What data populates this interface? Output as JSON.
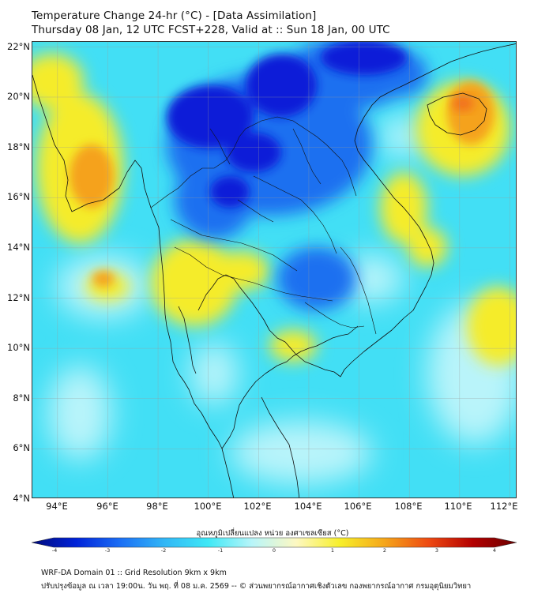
{
  "header": {
    "title_line1": "Temperature Change 24-hr (°C) - [Data Assimilation]",
    "title_line2": "Thursday 08 Jan, 12 UTC FCST+228, Valid at :: Sun 18 Jan, 00 UTC"
  },
  "map": {
    "lat_labels": [
      "22°N",
      "20°N",
      "18°N",
      "16°N",
      "14°N",
      "12°N",
      "10°N",
      "8°N",
      "6°N",
      "4°N"
    ],
    "lon_labels": [
      "94°E",
      "96°E",
      "98°E",
      "100°E",
      "102°E",
      "104°E",
      "106°E",
      "108°E",
      "110°E",
      "112°E"
    ],
    "lat_range": [
      4,
      22.2
    ],
    "lon_range": [
      93,
      112.3
    ],
    "background_color": "#42dff5",
    "colors": {
      "dark_blue": "#0a1fd8",
      "blue": "#1f6ff0",
      "cyan": "#38e5f5",
      "light_cyan": "#b9f4fa",
      "yellow": "#f5ec2a",
      "orange": "#f5a21a",
      "red_orange": "#f2711a"
    }
  },
  "colorbar": {
    "title": "อุณหภูมิเปลี่ยนแปลง หน่วย องศาเซลเซียส (°C)",
    "ticks": [
      "-4",
      "-3",
      "-2",
      "-1",
      "0",
      "1",
      "2",
      "3",
      "4"
    ],
    "range": [
      -4,
      4
    ],
    "colors": [
      "#000a7a",
      "#0022d8",
      "#1b6ef5",
      "#31b6f6",
      "#3ee8f6",
      "#b8f5f9",
      "#fdf8c2",
      "#f7ef2a",
      "#f5a61a",
      "#ee4a12",
      "#b40000",
      "#6a0000"
    ]
  },
  "footer": {
    "line1": "WRF-DA Domain 01 :: Grid Resolution 9km x 9km",
    "line2": "ปรับปรุงข้อมูล ณ เวลา 19:00น. วัน พฤ. ที่ 08 ม.ค. 2569 -- © ส่วนพยากรณ์อากาศเชิงตัวเลข กองพยากรณ์อากาศ กรมอุตุนิยมวิทยา"
  }
}
